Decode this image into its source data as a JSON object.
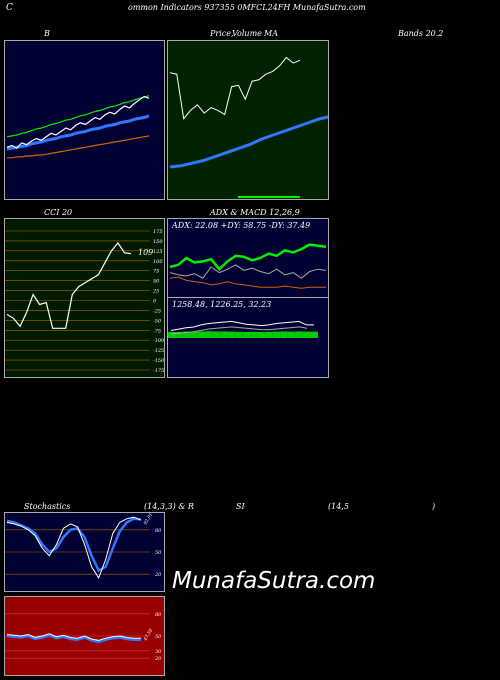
{
  "header": {
    "text": "ommon  Indicators 937355 0MFCL24FH MunafaSutra.com",
    "c_mark": "C"
  },
  "labels": {
    "bb": "B",
    "price": "Price,",
    "volume": "Volume",
    "ma": "MA",
    "bands": "Bands 20.2",
    "cci": "CCI 20",
    "adx_macd": "ADX  & MACD 12,26,9",
    "adx_values": "ADX: 22.08  +DY: 58.75 -DY: 37.49",
    "macd_values": "1258.48,  1226.25,  32.23",
    "stoch_left": "Stochastics",
    "stoch_mid": "(14,3,3) & R",
    "rsi_si": "SI",
    "rsi_param": "(14,5",
    "rsi_close": ")",
    "cci_value": "109",
    "stoch_value": "92.91",
    "rsi_value": "47.50"
  },
  "watermark": "MunafaSutra.com",
  "colors": {
    "panel_blue_bg": "#000033",
    "panel_green_bg": "#002200",
    "cci_bg": "#001a00",
    "rsi_bg": "#990000",
    "price_line": "#ffffff",
    "ma_blue": "#3377ff",
    "green": "#00ee00",
    "orange": "#cc6600",
    "grid_orange": "#aa6600"
  },
  "chart_data": [
    {
      "type": "line",
      "name": "bollinger",
      "series": [
        {
          "name": "close",
          "values": [
            1150,
            1152,
            1149,
            1155,
            1153,
            1157,
            1160,
            1158,
            1162,
            1166,
            1164,
            1168,
            1172,
            1170,
            1175,
            1178,
            1176,
            1180,
            1184,
            1182,
            1187,
            1190,
            1188,
            1193,
            1197,
            1195,
            1200,
            1204,
            1208,
            1206
          ]
        },
        {
          "name": "upper",
          "values": [
            1162,
            1163,
            1164,
            1166,
            1167,
            1169,
            1171,
            1172,
            1174,
            1176,
            1177,
            1179,
            1181,
            1182,
            1184,
            1186,
            1187,
            1189,
            1191,
            1192,
            1194,
            1196,
            1197,
            1199,
            1201,
            1202,
            1204,
            1206,
            1207,
            1209
          ]
        },
        {
          "name": "middle",
          "values": [
            1148,
            1149,
            1150,
            1151,
            1152,
            1154,
            1155,
            1156,
            1158,
            1159,
            1160,
            1162,
            1163,
            1164,
            1166,
            1167,
            1168,
            1170,
            1171,
            1172,
            1174,
            1175,
            1176,
            1178,
            1179,
            1180,
            1182,
            1183,
            1184,
            1186
          ]
        },
        {
          "name": "lower",
          "values": [
            1138,
            1138,
            1139,
            1139,
            1140,
            1140,
            1141,
            1141,
            1142,
            1143,
            1144,
            1145,
            1146,
            1147,
            1148,
            1149,
            1150,
            1151,
            1152,
            1153,
            1154,
            1155,
            1156,
            1157,
            1158,
            1159,
            1160,
            1161,
            1162,
            1163
          ]
        }
      ]
    },
    {
      "type": "line",
      "name": "price_ma",
      "series": [
        {
          "name": "price",
          "values": [
            1205,
            1204,
            1172,
            1178,
            1182,
            1176,
            1180,
            1178,
            1175,
            1195,
            1196,
            1186,
            1199,
            1200,
            1204,
            1206,
            1210,
            1216,
            1212,
            1214
          ]
        },
        {
          "name": "ma",
          "values": [
            1138,
            1139,
            1141,
            1143,
            1146,
            1149,
            1152,
            1155,
            1159,
            1162,
            1165,
            1168,
            1171,
            1174,
            1176,
            1178,
            1180,
            1182,
            1185,
            1188
          ]
        }
      ]
    },
    {
      "type": "line",
      "name": "cci",
      "ylim": [
        -175,
        175
      ],
      "ticks": [
        175,
        150,
        125,
        100,
        75,
        50,
        25,
        0,
        -25,
        -50,
        -75,
        -100,
        -125,
        -150,
        -175
      ],
      "values": [
        -35,
        -45,
        -65,
        -30,
        15,
        -10,
        -5,
        -70,
        -70,
        -70,
        15,
        35,
        45,
        55,
        65,
        95,
        125,
        145,
        120,
        118
      ]
    },
    {
      "type": "line",
      "name": "adx",
      "series": [
        {
          "name": "adx",
          "values": [
            30,
            31,
            28,
            27,
            26,
            24,
            25,
            27,
            25,
            24,
            23,
            22,
            22,
            22,
            23,
            22,
            21,
            22,
            22,
            22
          ]
        },
        {
          "name": "plus_di",
          "values": [
            40,
            42,
            48,
            44,
            45,
            47,
            38,
            45,
            50,
            49,
            46,
            48,
            52,
            50,
            55,
            53,
            56,
            60,
            59,
            58
          ]
        },
        {
          "name": "minus_di",
          "values": [
            35,
            33,
            32,
            34,
            30,
            40,
            35,
            38,
            42,
            37,
            39,
            36,
            34,
            38,
            33,
            35,
            30,
            36,
            38,
            37
          ]
        }
      ]
    },
    {
      "type": "line",
      "name": "macd",
      "series": [
        {
          "name": "macd",
          "values": [
            1250,
            1252,
            1254,
            1255,
            1258,
            1260,
            1261,
            1262,
            1263,
            1261,
            1259,
            1258,
            1257,
            1258,
            1260,
            1261,
            1262,
            1263,
            1258,
            1258
          ]
        },
        {
          "name": "signal",
          "values": [
            1248,
            1249,
            1250,
            1251,
            1253,
            1255,
            1256,
            1257,
            1258,
            1257,
            1256,
            1255,
            1254,
            1254,
            1255,
            1256,
            1257,
            1258,
            1256,
            1226
          ]
        },
        {
          "name": "hist",
          "values": [
            30,
            30,
            32,
            31,
            33,
            34,
            33,
            33,
            32,
            31,
            30,
            31,
            30,
            31,
            32,
            33,
            32,
            33,
            32,
            32
          ]
        }
      ]
    },
    {
      "type": "line",
      "name": "stochastics",
      "ticks": [
        80,
        50,
        20
      ],
      "series": [
        {
          "name": "k",
          "values": [
            90,
            88,
            85,
            80,
            72,
            55,
            45,
            60,
            82,
            88,
            84,
            60,
            30,
            15,
            40,
            75,
            90,
            95,
            97,
            93
          ]
        },
        {
          "name": "d",
          "values": [
            92,
            90,
            86,
            82,
            75,
            60,
            50,
            55,
            70,
            80,
            82,
            70,
            45,
            25,
            30,
            55,
            78,
            90,
            95,
            94
          ]
        }
      ]
    },
    {
      "type": "line",
      "name": "rsi",
      "ticks": [
        80,
        50,
        30,
        20
      ],
      "values": [
        52,
        51,
        50,
        52,
        48,
        50,
        53,
        49,
        51,
        48,
        47,
        50,
        46,
        44,
        47,
        49,
        50,
        48,
        47,
        47
      ]
    }
  ]
}
